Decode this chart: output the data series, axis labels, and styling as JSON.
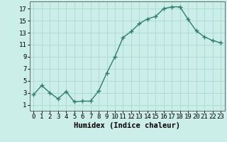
{
  "x": [
    0,
    1,
    2,
    3,
    4,
    5,
    6,
    7,
    8,
    9,
    10,
    11,
    12,
    13,
    14,
    15,
    16,
    17,
    18,
    19,
    20,
    21,
    22,
    23
  ],
  "y": [
    2.7,
    4.2,
    3.0,
    2.0,
    3.2,
    1.5,
    1.6,
    1.6,
    3.3,
    6.3,
    9.0,
    12.2,
    13.2,
    14.5,
    15.3,
    15.7,
    17.0,
    17.3,
    17.3,
    15.2,
    13.3,
    12.3,
    11.7,
    11.3
  ],
  "line_color": "#2e7d6e",
  "marker": "+",
  "marker_size": 4,
  "bg_color": "#cceee8",
  "grid_color": "#aad8d2",
  "axis_color": "#666666",
  "xlabel": "Humidex (Indice chaleur)",
  "xlim": [
    -0.5,
    23.5
  ],
  "ylim": [
    0.0,
    18.2
  ],
  "yticks": [
    1,
    3,
    5,
    7,
    9,
    11,
    13,
    15,
    17
  ],
  "xticks": [
    0,
    1,
    2,
    3,
    4,
    5,
    6,
    7,
    8,
    9,
    10,
    11,
    12,
    13,
    14,
    15,
    16,
    17,
    18,
    19,
    20,
    21,
    22,
    23
  ],
  "xtick_labels": [
    "0",
    "1",
    "2",
    "3",
    "4",
    "5",
    "6",
    "7",
    "8",
    "9",
    "10",
    "11",
    "12",
    "13",
    "14",
    "15",
    "16",
    "17",
    "18",
    "19",
    "20",
    "21",
    "22",
    "23"
  ],
  "xlabel_fontsize": 7.5,
  "tick_fontsize": 6.5,
  "linewidth": 1.0,
  "markeredgewidth": 1.0
}
